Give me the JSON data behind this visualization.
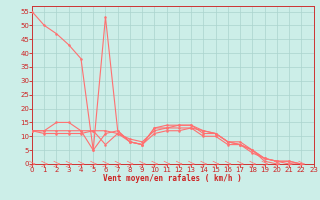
{
  "xlabel": "Vent moyen/en rafales ( km/h )",
  "bg_color": "#cceee8",
  "grid_color": "#aad4ce",
  "line_color": "#ff7070",
  "x_ticks": [
    0,
    1,
    2,
    3,
    4,
    5,
    6,
    7,
    8,
    9,
    10,
    11,
    12,
    13,
    14,
    15,
    16,
    17,
    18,
    19,
    20,
    21,
    22,
    23
  ],
  "y_ticks": [
    0,
    5,
    10,
    15,
    20,
    25,
    30,
    35,
    40,
    45,
    50,
    55
  ],
  "xlim": [
    0,
    23
  ],
  "ylim": [
    0,
    57
  ],
  "curves": [
    {
      "x": [
        0,
        1,
        2,
        3,
        4,
        5,
        6,
        7,
        8,
        9,
        10,
        11,
        12,
        13,
        14,
        15,
        16,
        17,
        18,
        19,
        20
      ],
      "y": [
        55,
        50,
        47,
        43,
        38,
        5,
        53,
        12,
        8,
        7,
        13,
        13,
        14,
        14,
        12,
        11,
        8,
        7,
        5,
        1,
        0
      ]
    },
    {
      "x": [
        0,
        1,
        2,
        3,
        4,
        5,
        6,
        7,
        8,
        9,
        10,
        11,
        12,
        13,
        14,
        15,
        16,
        17,
        18,
        19,
        20,
        21,
        22
      ],
      "y": [
        12,
        12,
        15,
        15,
        12,
        5,
        11,
        12,
        8,
        7,
        13,
        14,
        14,
        14,
        11,
        11,
        8,
        8,
        5,
        2,
        1,
        1,
        0
      ]
    },
    {
      "x": [
        0,
        1,
        2,
        3,
        4,
        5,
        6,
        7,
        8,
        9,
        10,
        11,
        12,
        13,
        14,
        15,
        16,
        17,
        18,
        19,
        20,
        21,
        22
      ],
      "y": [
        12,
        12,
        12,
        12,
        12,
        12,
        12,
        11,
        9,
        8,
        12,
        13,
        13,
        13,
        12,
        11,
        8,
        7,
        5,
        2,
        1,
        1,
        0
      ]
    },
    {
      "x": [
        0,
        1,
        2,
        3,
        4,
        5,
        6,
        7,
        8,
        9,
        10,
        11,
        12,
        13,
        14,
        15,
        16,
        17,
        18,
        19,
        20,
        21,
        22
      ],
      "y": [
        12,
        11,
        11,
        11,
        11,
        12,
        7,
        11,
        8,
        7,
        11,
        12,
        12,
        13,
        10,
        10,
        7,
        7,
        4,
        2,
        1,
        0,
        0
      ]
    },
    {
      "x": [
        0,
        1,
        2,
        3,
        4,
        5,
        6,
        7,
        8,
        9,
        10,
        11,
        12,
        13,
        14,
        15,
        16,
        17,
        18,
        19,
        20,
        21,
        22
      ],
      "y": [
        0,
        0,
        0,
        0,
        0,
        0,
        0,
        0,
        0,
        0,
        0,
        0,
        0,
        0,
        0,
        0,
        0,
        0,
        0,
        0,
        0,
        0,
        0
      ]
    }
  ]
}
